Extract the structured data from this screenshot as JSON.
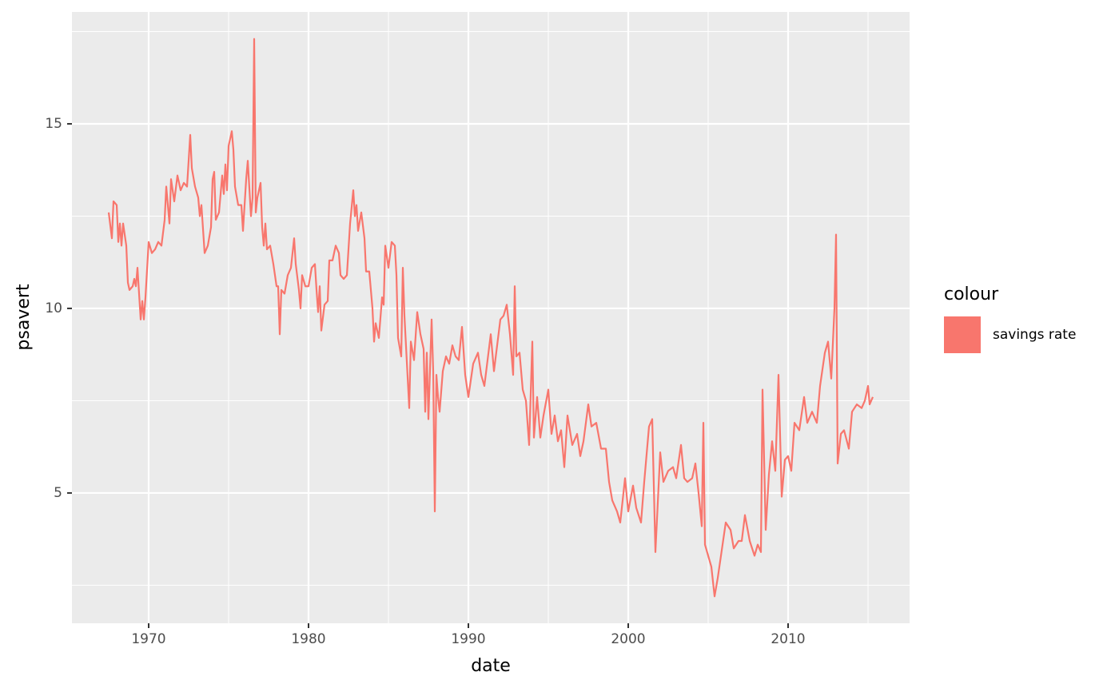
{
  "chart_data": {
    "type": "line",
    "x_label": "date",
    "y_label": "psavert",
    "legend_title": "colour",
    "legend_position": "right",
    "xlim": [
      1965.2,
      2017.6
    ],
    "ylim": [
      1.47,
      18.03
    ],
    "xticks": [
      1970,
      1980,
      1990,
      2000,
      2010
    ],
    "yticks": [
      5,
      10,
      15
    ],
    "x_minor_ticks": [
      1965,
      1975,
      1985,
      1995,
      2005,
      2015
    ],
    "y_minor_ticks": [
      2.5,
      7.5,
      12.5,
      17.5
    ],
    "grid": true,
    "panel_color": "#EBEBEB",
    "x": [
      1967.5,
      1967.7,
      1967.8,
      1968.0,
      1968.1,
      1968.2,
      1968.3,
      1968.4,
      1968.6,
      1968.7,
      1968.8,
      1969.0,
      1969.1,
      1969.2,
      1969.3,
      1969.5,
      1969.6,
      1969.7,
      1969.8,
      1970.0,
      1970.2,
      1970.4,
      1970.6,
      1970.8,
      1971.0,
      1971.1,
      1971.3,
      1971.4,
      1971.6,
      1971.8,
      1972.0,
      1972.2,
      1972.4,
      1972.6,
      1972.7,
      1972.9,
      1973.1,
      1973.2,
      1973.3,
      1973.5,
      1973.7,
      1973.9,
      1974.0,
      1974.1,
      1974.2,
      1974.4,
      1974.6,
      1974.7,
      1974.8,
      1974.9,
      1975.0,
      1975.2,
      1975.3,
      1975.4,
      1975.6,
      1975.8,
      1975.9,
      1976.1,
      1976.2,
      1976.4,
      1976.5,
      1976.6,
      1976.7,
      1976.8,
      1977.0,
      1977.1,
      1977.2,
      1977.3,
      1977.4,
      1977.6,
      1977.8,
      1978.0,
      1978.1,
      1978.2,
      1978.3,
      1978.5,
      1978.7,
      1978.9,
      1979.1,
      1979.2,
      1979.4,
      1979.5,
      1979.6,
      1979.8,
      1980.0,
      1980.2,
      1980.4,
      1980.5,
      1980.6,
      1980.7,
      1980.8,
      1981.0,
      1981.2,
      1981.3,
      1981.5,
      1981.7,
      1981.9,
      1982.0,
      1982.2,
      1982.4,
      1982.6,
      1982.8,
      1982.9,
      1983.0,
      1983.1,
      1983.3,
      1983.5,
      1983.6,
      1983.8,
      1984.0,
      1984.1,
      1984.2,
      1984.4,
      1984.6,
      1984.7,
      1984.8,
      1985.0,
      1985.2,
      1985.4,
      1985.5,
      1985.6,
      1985.8,
      1985.9,
      1986.0,
      1986.3,
      1986.4,
      1986.6,
      1986.8,
      1987.0,
      1987.2,
      1987.3,
      1987.4,
      1987.5,
      1987.7,
      1987.8,
      1987.9,
      1988.0,
      1988.1,
      1988.2,
      1988.4,
      1988.6,
      1988.8,
      1989.0,
      1989.2,
      1989.4,
      1989.6,
      1989.8,
      1990.0,
      1990.3,
      1990.6,
      1990.8,
      1991.0,
      1991.2,
      1991.4,
      1991.6,
      1991.8,
      1992.0,
      1992.2,
      1992.4,
      1992.6,
      1992.8,
      1992.9,
      1993.0,
      1993.2,
      1993.4,
      1993.6,
      1993.8,
      1994.0,
      1994.1,
      1994.3,
      1994.5,
      1994.7,
      1995.0,
      1995.2,
      1995.4,
      1995.6,
      1995.8,
      1996.0,
      1996.2,
      1996.5,
      1996.8,
      1997.0,
      1997.2,
      1997.5,
      1997.7,
      1998.0,
      1998.3,
      1998.6,
      1998.8,
      1999.0,
      1999.3,
      1999.5,
      1999.8,
      2000.0,
      2000.3,
      2000.5,
      2000.8,
      2001.0,
      2001.3,
      2001.5,
      2001.7,
      2002.0,
      2002.2,
      2002.5,
      2002.8,
      2003.0,
      2003.3,
      2003.5,
      2003.7,
      2004.0,
      2004.2,
      2004.4,
      2004.6,
      2004.7,
      2004.8,
      2005.0,
      2005.2,
      2005.4,
      2005.6,
      2005.9,
      2006.1,
      2006.4,
      2006.6,
      2006.9,
      2007.1,
      2007.3,
      2007.6,
      2007.9,
      2008.1,
      2008.3,
      2008.4,
      2008.6,
      2008.8,
      2009.0,
      2009.2,
      2009.4,
      2009.6,
      2009.8,
      2010.0,
      2010.2,
      2010.4,
      2010.7,
      2011.0,
      2011.2,
      2011.5,
      2011.8,
      2012.0,
      2012.3,
      2012.5,
      2012.7,
      2012.9,
      2013.0,
      2013.1,
      2013.3,
      2013.5,
      2013.8,
      2014.0,
      2014.3,
      2014.6,
      2014.8,
      2015.0,
      2015.1,
      2015.3
    ],
    "series": [
      {
        "name": "savings rate",
        "color": "#F8766D",
        "values": [
          12.6,
          11.9,
          12.9,
          12.8,
          11.8,
          12.3,
          11.7,
          12.3,
          11.7,
          10.7,
          10.5,
          10.6,
          10.8,
          10.6,
          11.1,
          9.7,
          10.2,
          9.7,
          10.3,
          11.8,
          11.5,
          11.6,
          11.8,
          11.7,
          12.4,
          13.3,
          12.3,
          13.5,
          12.9,
          13.6,
          13.2,
          13.4,
          13.3,
          14.7,
          13.8,
          13.3,
          13.0,
          12.5,
          12.8,
          11.5,
          11.7,
          12.2,
          13.5,
          13.7,
          12.4,
          12.6,
          13.6,
          13.1,
          13.9,
          13.2,
          14.4,
          14.8,
          14.3,
          13.3,
          12.8,
          12.8,
          12.1,
          13.5,
          14.0,
          12.5,
          13.0,
          17.3,
          12.6,
          13.0,
          13.4,
          12.2,
          11.7,
          12.3,
          11.6,
          11.7,
          11.2,
          10.6,
          10.6,
          9.3,
          10.5,
          10.4,
          10.9,
          11.1,
          11.9,
          11.2,
          10.5,
          10.0,
          10.9,
          10.6,
          10.6,
          11.1,
          11.2,
          10.5,
          9.9,
          10.6,
          9.4,
          10.1,
          10.2,
          11.3,
          11.3,
          11.7,
          11.5,
          10.9,
          10.8,
          10.9,
          12.3,
          13.2,
          12.5,
          12.8,
          12.1,
          12.6,
          11.9,
          11.0,
          11.0,
          10.0,
          9.1,
          9.6,
          9.2,
          10.3,
          10.1,
          11.7,
          11.1,
          11.8,
          11.7,
          10.9,
          9.2,
          8.7,
          11.1,
          9.8,
          7.3,
          9.1,
          8.6,
          9.9,
          9.3,
          8.9,
          7.2,
          8.8,
          7.0,
          9.7,
          8.3,
          4.5,
          8.2,
          7.6,
          7.2,
          8.3,
          8.7,
          8.5,
          9.0,
          8.7,
          8.6,
          9.5,
          8.2,
          7.6,
          8.5,
          8.8,
          8.2,
          7.9,
          8.6,
          9.3,
          8.3,
          9.0,
          9.7,
          9.8,
          10.1,
          9.3,
          8.2,
          10.6,
          8.7,
          8.8,
          7.8,
          7.5,
          6.3,
          9.1,
          6.5,
          7.6,
          6.5,
          7.1,
          7.8,
          6.6,
          7.1,
          6.4,
          6.7,
          5.7,
          7.1,
          6.3,
          6.6,
          6.0,
          6.4,
          7.4,
          6.8,
          6.9,
          6.2,
          6.2,
          5.3,
          4.8,
          4.5,
          4.2,
          5.4,
          4.5,
          5.2,
          4.6,
          4.2,
          5.3,
          6.8,
          7.0,
          3.4,
          6.1,
          5.3,
          5.6,
          5.7,
          5.4,
          6.3,
          5.4,
          5.3,
          5.4,
          5.8,
          5.0,
          4.1,
          6.9,
          3.6,
          3.3,
          3.0,
          2.2,
          2.7,
          3.6,
          4.2,
          4.0,
          3.5,
          3.7,
          3.7,
          4.4,
          3.7,
          3.3,
          3.6,
          3.4,
          7.8,
          4.0,
          5.5,
          6.4,
          5.6,
          8.2,
          4.9,
          5.9,
          6.0,
          5.6,
          6.9,
          6.7,
          7.6,
          6.9,
          7.2,
          6.9,
          7.9,
          8.8,
          9.1,
          8.1,
          10.0,
          12.0,
          5.8,
          6.6,
          6.7,
          6.2,
          7.2,
          7.4,
          7.3,
          7.5,
          7.9,
          7.4,
          7.6
        ]
      }
    ]
  }
}
